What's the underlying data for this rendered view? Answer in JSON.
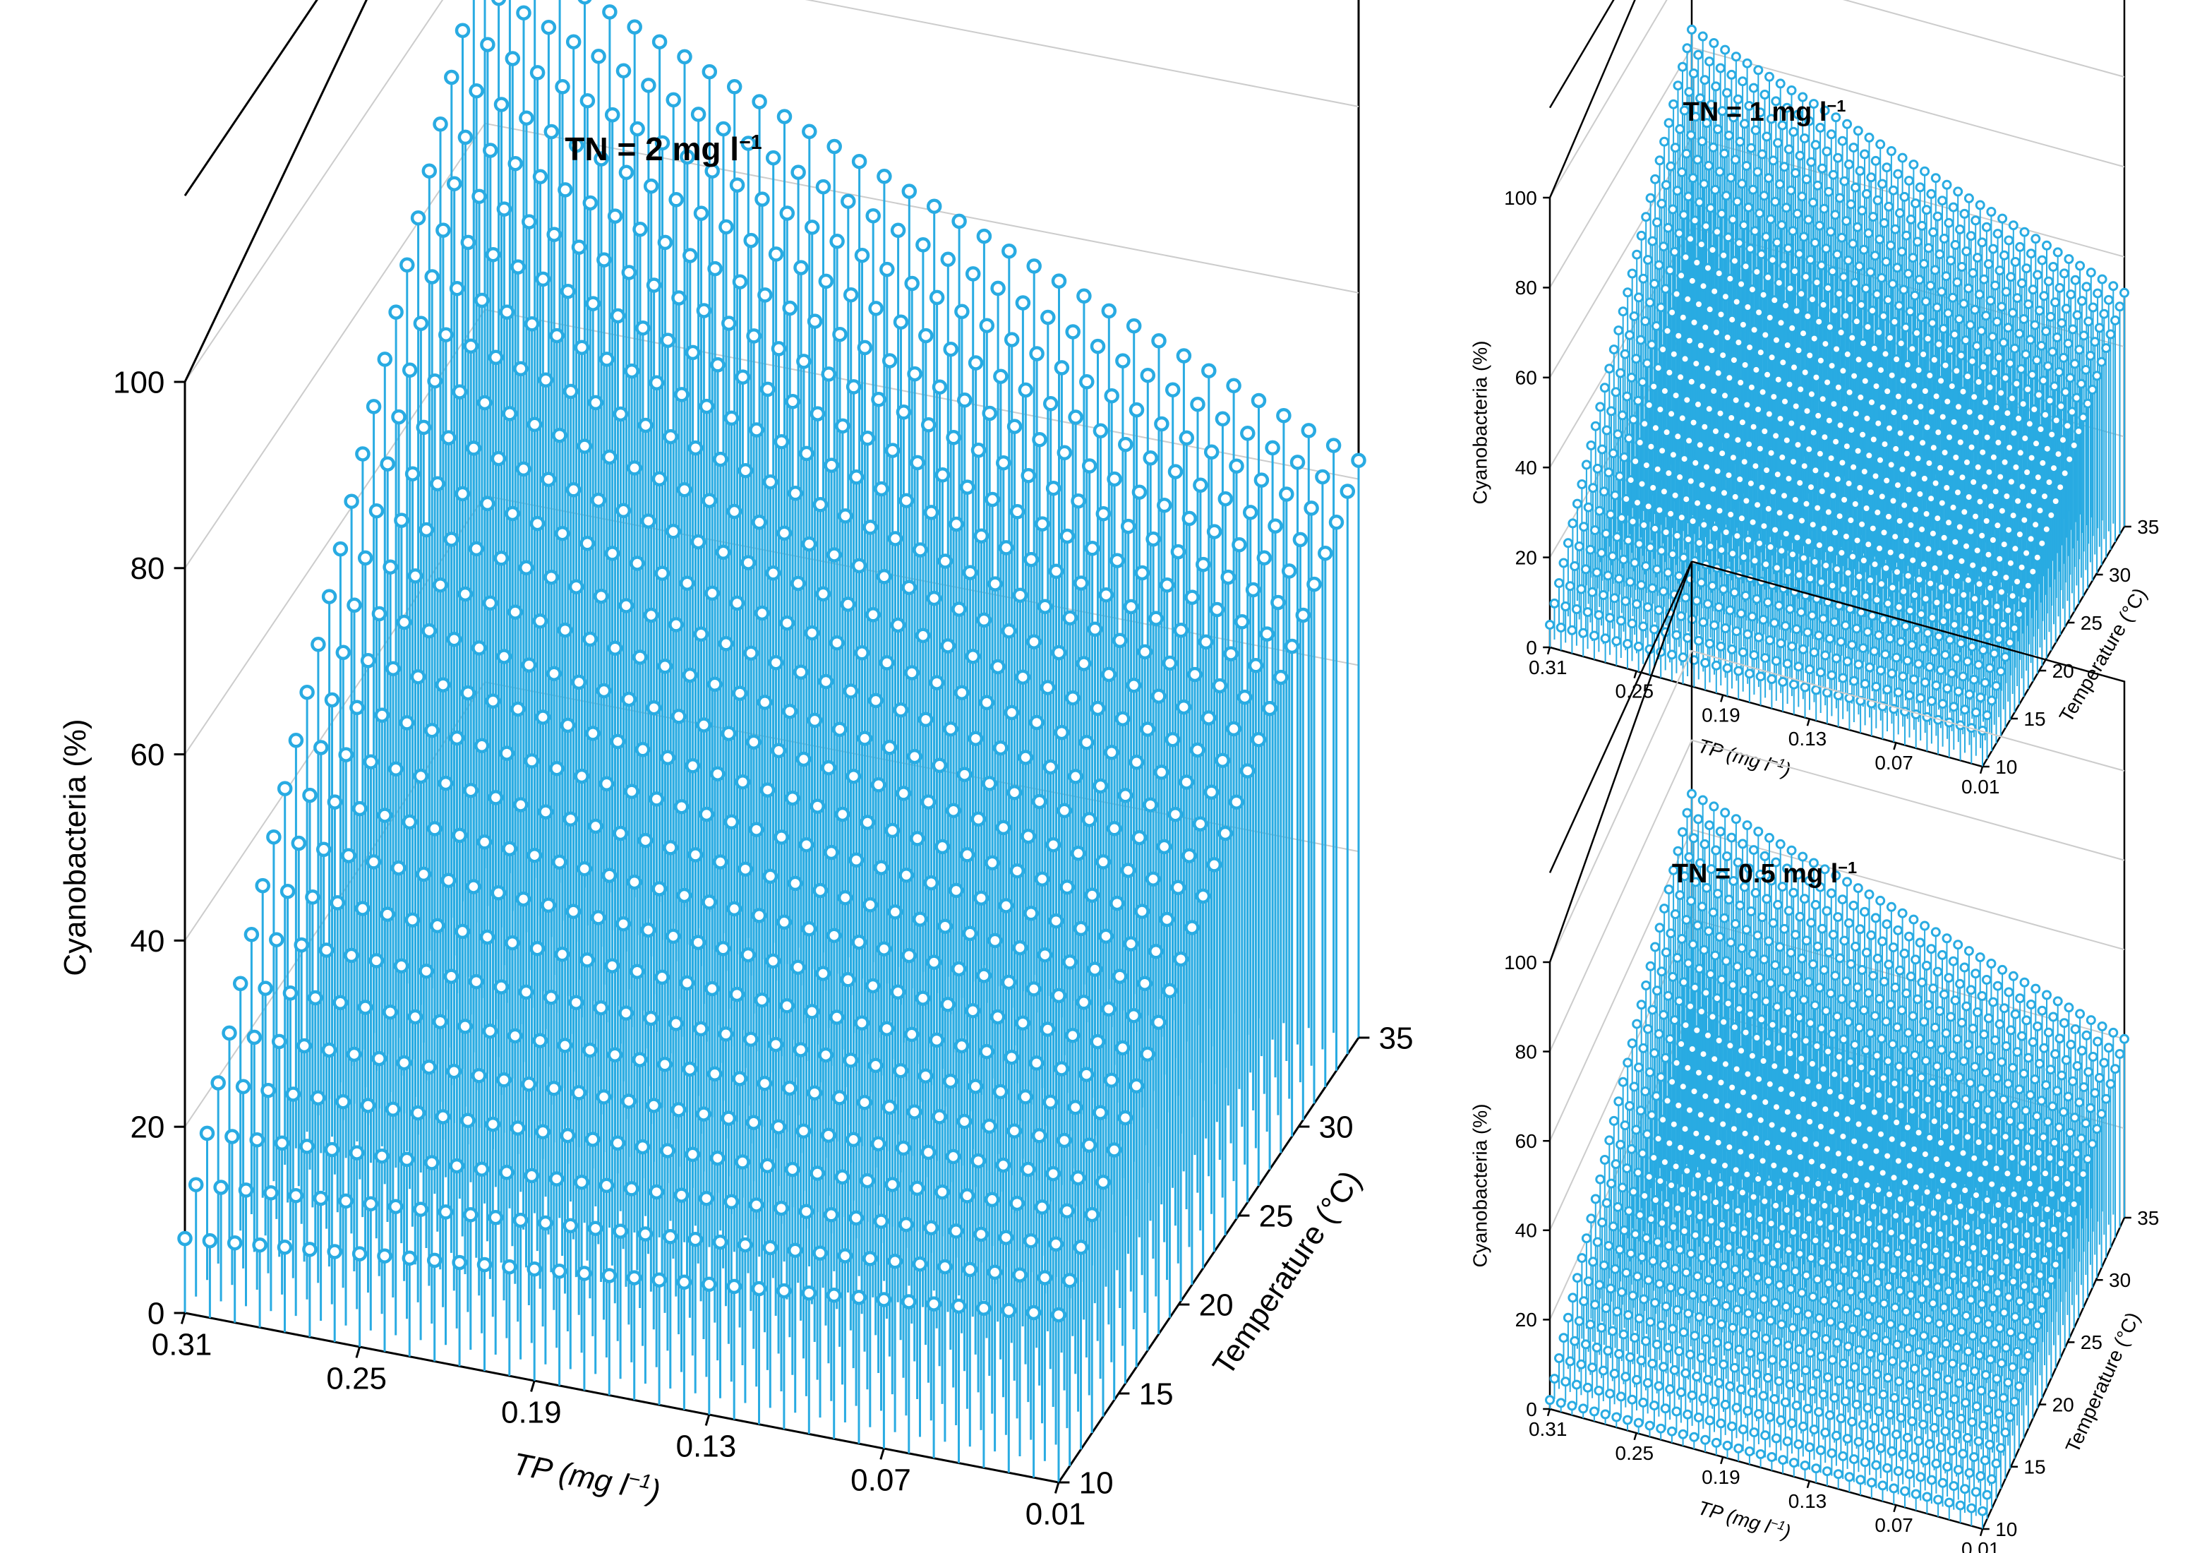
{
  "figure": {
    "stem_color": "#29ABE2",
    "axis_color": "#000000",
    "grid_color": "#cccccc"
  },
  "chart_data": [
    {
      "type": "stem3d",
      "id": "main",
      "title": "TN = 2 mg l⁻¹",
      "title_parts": {
        "base": "TN = 2 mg l",
        "sup": "−1"
      },
      "xlabel": "TP (mg l⁻¹)",
      "xlabel_parts": {
        "base": "TP (mg l",
        "sup": "−1",
        "tail": ")"
      },
      "ylabel": "Temperature (°C)",
      "zlabel": "Cyanobacteria (%)",
      "x_ticks": [
        "0.31",
        "0.25",
        "0.19",
        "0.13",
        "0.07",
        "0.01"
      ],
      "y_ticks": [
        "10",
        "15",
        "20",
        "25",
        "30",
        "35"
      ],
      "z_ticks": [
        "0",
        "20",
        "40",
        "60",
        "80",
        "100"
      ],
      "xlim": [
        0.31,
        0.01
      ],
      "ylim": [
        10,
        35
      ],
      "zlim": [
        0,
        100
      ],
      "grid_resolution": {
        "nx": 36,
        "ny": 28
      },
      "corner_values": {
        "tp_0.31_t_10": 8,
        "tp_0.31_t_35": 100,
        "tp_0.01_t_10": 18,
        "tp_0.01_t_35": 62
      }
    },
    {
      "type": "stem3d",
      "id": "tn1",
      "title": "TN = 1 mg l⁻¹",
      "title_parts": {
        "base": "TN = 1 mg l",
        "sup": "−1"
      },
      "xlabel": "TP (mg l⁻¹)",
      "xlabel_parts": {
        "base": "TP (mg l",
        "sup": "−1",
        "tail": ")"
      },
      "ylabel": "Temperature (°C)",
      "zlabel": "Cyanobacteria (%)",
      "x_ticks": [
        "0.31",
        "0.25",
        "0.19",
        "0.13",
        "0.07",
        "0.01"
      ],
      "y_ticks": [
        "10",
        "15",
        "20",
        "25",
        "30",
        "35"
      ],
      "z_ticks": [
        "0",
        "20",
        "40",
        "60",
        "80",
        "100"
      ],
      "xlim": [
        0.31,
        0.01
      ],
      "ylim": [
        10,
        35
      ],
      "zlim": [
        0,
        100
      ],
      "grid_resolution": {
        "nx": 40,
        "ny": 32
      },
      "corner_values": {
        "tp_0.31_t_10": 5,
        "tp_0.31_t_35": 84,
        "tp_0.01_t_10": 8,
        "tp_0.01_t_35": 52
      }
    },
    {
      "type": "stem3d",
      "id": "tn05",
      "title": "TN = 0.5 mg l⁻¹",
      "title_parts": {
        "base": "TN = 0.5 mg l",
        "sup": "−1"
      },
      "xlabel": "TP (mg l⁻¹)",
      "xlabel_parts": {
        "base": "TP (mg l",
        "sup": "−1",
        "tail": ")"
      },
      "ylabel": "Temperature (°C)",
      "zlabel": "Cyanobacteria (%)",
      "x_ticks": [
        "0.31",
        "0.25",
        "0.19",
        "0.13",
        "0.07",
        "0.01"
      ],
      "y_ticks": [
        "10",
        "15",
        "20",
        "25",
        "30",
        "35"
      ],
      "z_ticks": [
        "0",
        "20",
        "40",
        "60",
        "80",
        "100"
      ],
      "xlim": [
        0.31,
        0.01
      ],
      "ylim": [
        10,
        35
      ],
      "zlim": [
        0,
        100
      ],
      "grid_resolution": {
        "nx": 40,
        "ny": 32
      },
      "corner_values": {
        "tp_0.31_t_10": 2,
        "tp_0.31_t_35": 68,
        "tp_0.01_t_10": 4,
        "tp_0.01_t_35": 40
      }
    }
  ]
}
